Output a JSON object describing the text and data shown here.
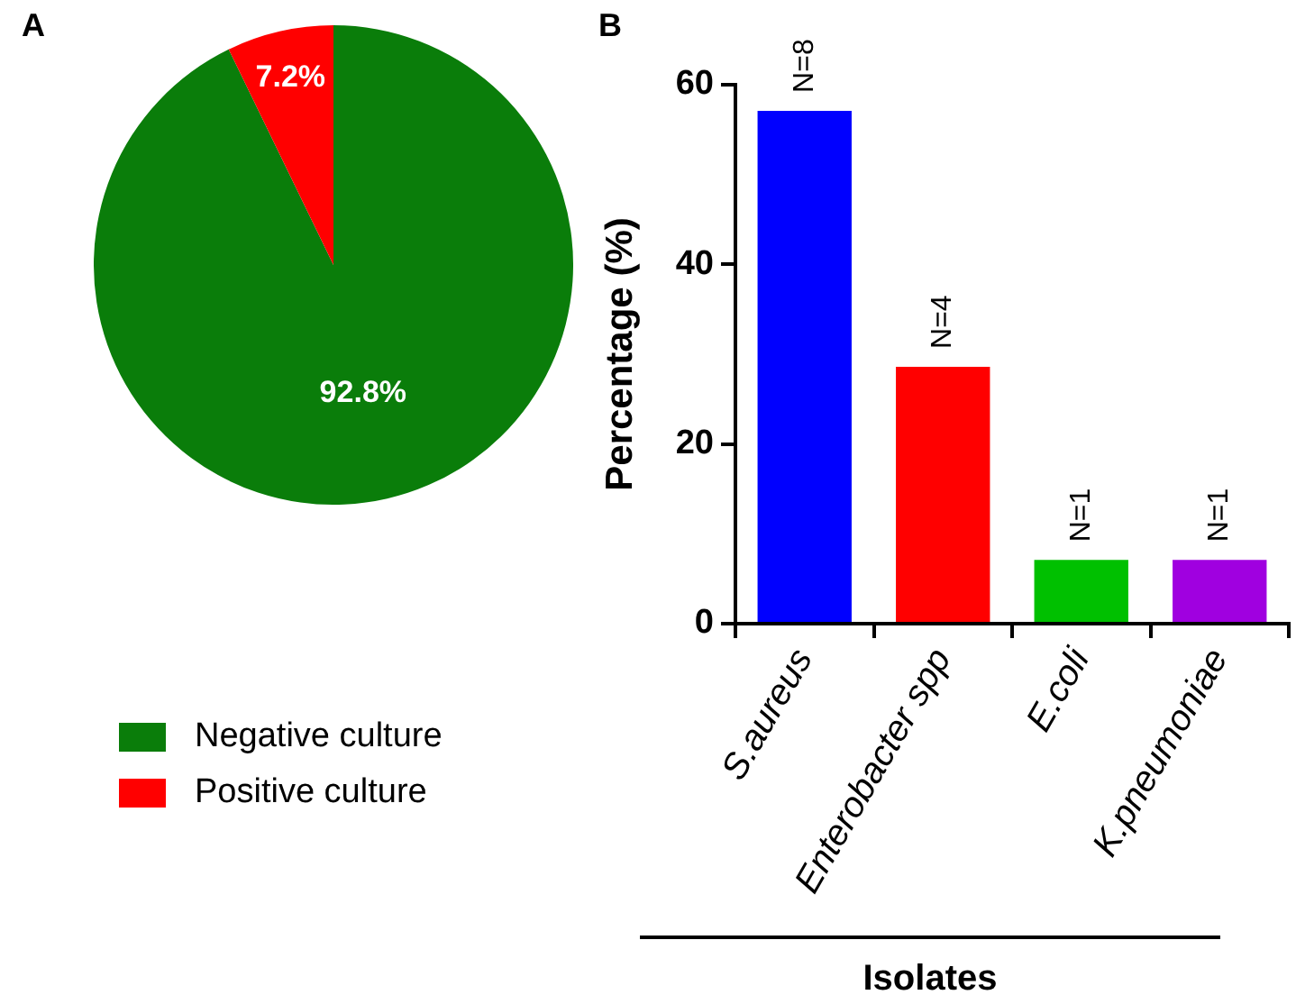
{
  "chart_data": [
    {
      "type": "pie",
      "title": "A",
      "categories": [
        "Negative culture",
        "Positive culture"
      ],
      "values": [
        92.8,
        7.2
      ],
      "colors": [
        "#0a7d0a",
        "#ff0000"
      ],
      "value_labels": [
        "92.8%",
        "7.2%"
      ],
      "legend": "bottom"
    },
    {
      "type": "bar",
      "title": "B",
      "ylabel": "Percentage (%)",
      "xlabel": "Isolates",
      "categories": [
        "S.aureus",
        "Enterobacter spp",
        "E.coli",
        "K.pneumoniae"
      ],
      "values": [
        57.1,
        28.6,
        7.1,
        7.1
      ],
      "colors": [
        "#0000ff",
        "#ff0000",
        "#00c000",
        "#a000e0"
      ],
      "annotations": [
        {
          "text": "N=8",
          "x": "S.aureus",
          "y": 57.1
        },
        {
          "text": "N=4",
          "x": "Enterobacter spp",
          "y": 28.6
        },
        {
          "text": "N=1",
          "x": "E.coli",
          "y": 7.1
        },
        {
          "text": "N=1",
          "x": "K.pneumoniae",
          "y": 7.1
        }
      ],
      "ylim": [
        0,
        60
      ],
      "yticks": [
        0,
        20,
        40,
        60
      ],
      "grid": false
    }
  ]
}
